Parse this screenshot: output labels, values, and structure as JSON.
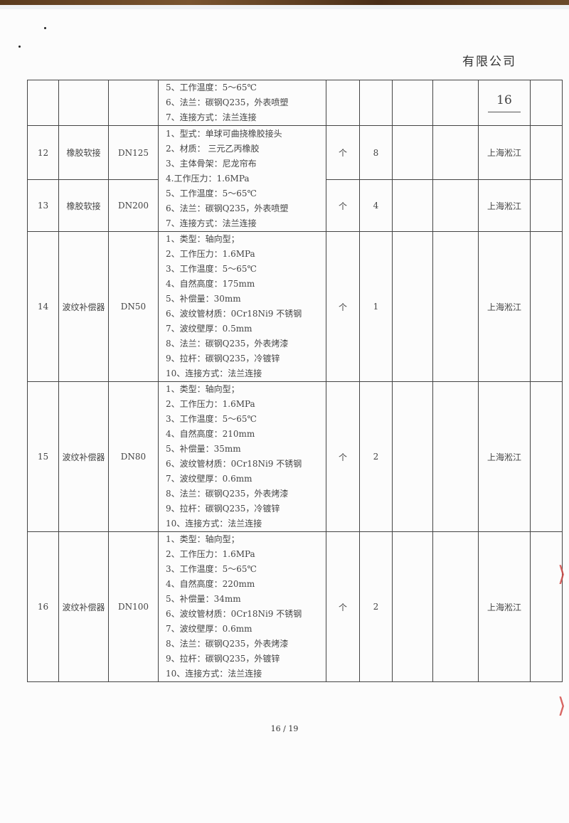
{
  "header": {
    "company": "有限公司"
  },
  "top_row": {
    "spec": [
      "5、工作温度：5～65℃",
      "6、法兰：碳钢Q235，外表喷塑",
      "7、连接方式：法兰连接"
    ],
    "page_mark": "16"
  },
  "rows": [
    {
      "no": "12",
      "name": "橡胶软接",
      "size": "DN125",
      "unit": "个",
      "qty": "8",
      "supplier": "上海淞江"
    },
    {
      "no": "13",
      "name": "橡胶软接",
      "size": "DN200",
      "unit": "个",
      "qty": "4",
      "supplier": "上海淞江"
    },
    {
      "no": "14",
      "name": "波纹补偿器",
      "size": "DN50",
      "unit": "个",
      "qty": "1",
      "supplier": "上海淞江"
    },
    {
      "no": "15",
      "name": "波纹补偿器",
      "size": "DN80",
      "unit": "个",
      "qty": "2",
      "supplier": "上海淞江"
    },
    {
      "no": "16",
      "name": "波纹补偿器",
      "size": "DN100",
      "unit": "个",
      "qty": "2",
      "supplier": "上海淞江"
    }
  ],
  "specs": {
    "r12_13": [
      "1、型式：单球可曲挠橡胶接头",
      "2、材质： 三元乙丙橡胶",
      "3、主体骨架：尼龙帘布",
      "4.工作压力：1.6MPa",
      "5、工作温度：5～65℃",
      "6、法兰：碳钢Q235，外表喷塑",
      "7、连接方式：法兰连接"
    ],
    "r14": [
      "1、类型：轴向型；",
      "2、工作压力：1.6MPa",
      "3、工作温度：5～65℃",
      "4、自然高度：175mm",
      "5、补偿量：30mm",
      "6、波纹管材质：0Cr18Ni9 不锈钢",
      "7、波纹壁厚：0.5mm",
      "8、法兰：碳钢Q235，外表烤漆",
      "9、拉杆：碳钢Q235，冷镀锌",
      "10、连接方式：法兰连接"
    ],
    "r15": [
      "1、类型：轴向型；",
      "2、工作压力：1.6MPa",
      "3、工作温度：5～65℃",
      "4、自然高度：210mm",
      "5、补偿量：35mm",
      "6、波纹管材质：0Cr18Ni9 不锈钢",
      "7、波纹壁厚：0.6mm",
      "8、法兰：碳钢Q235，外表烤漆",
      "9、拉杆：碳钢Q235，冷镀锌",
      "10、连接方式：法兰连接"
    ],
    "r16": [
      "1、类型：轴向型；",
      "2、工作压力：1.6MPa",
      "3、工作温度：5～65℃",
      "4、自然高度：220mm",
      "5、补偿量：34mm",
      "6、波纹管材质：0Cr18Ni9 不锈钢",
      "7、波纹壁厚：0.6mm",
      "8、法兰：碳钢Q235，外表烤漆",
      "9、拉杆：碳钢Q235，外镀锌",
      "10、连接方式：法兰连接"
    ]
  },
  "footer": {
    "page": "16 / 19"
  },
  "colors": {
    "stamp": "#d0413d",
    "paper_edge": "#5a3a1e"
  }
}
